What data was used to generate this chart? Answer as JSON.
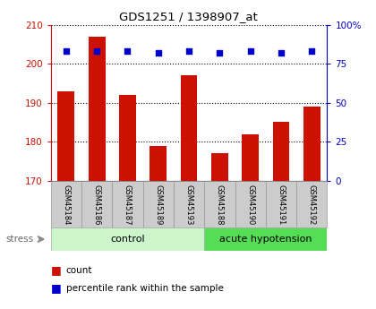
{
  "title": "GDS1251 / 1398907_at",
  "samples": [
    "GSM45184",
    "GSM45186",
    "GSM45187",
    "GSM45189",
    "GSM45193",
    "GSM45188",
    "GSM45190",
    "GSM45191",
    "GSM45192"
  ],
  "counts": [
    193,
    207,
    192,
    179,
    197,
    177,
    182,
    185,
    189
  ],
  "percentiles": [
    83,
    83,
    83,
    82,
    83,
    82,
    83,
    82,
    83
  ],
  "groups": [
    "control",
    "control",
    "control",
    "control",
    "control",
    "acute hypotension",
    "acute hypotension",
    "acute hypotension",
    "acute hypotension"
  ],
  "bar_color": "#cc1100",
  "dot_color": "#0000cc",
  "ylim_left": [
    170,
    210
  ],
  "ylim_right": [
    0,
    100
  ],
  "yticks_left": [
    170,
    180,
    190,
    200,
    210
  ],
  "yticks_right": [
    0,
    25,
    50,
    75,
    100
  ],
  "tick_bg_color": "#cccccc",
  "ctrl_color": "#ccf5cc",
  "hypo_color": "#55dd55",
  "stress_label": "stress",
  "legend_count": "count",
  "legend_percentile": "percentile rank within the sample"
}
